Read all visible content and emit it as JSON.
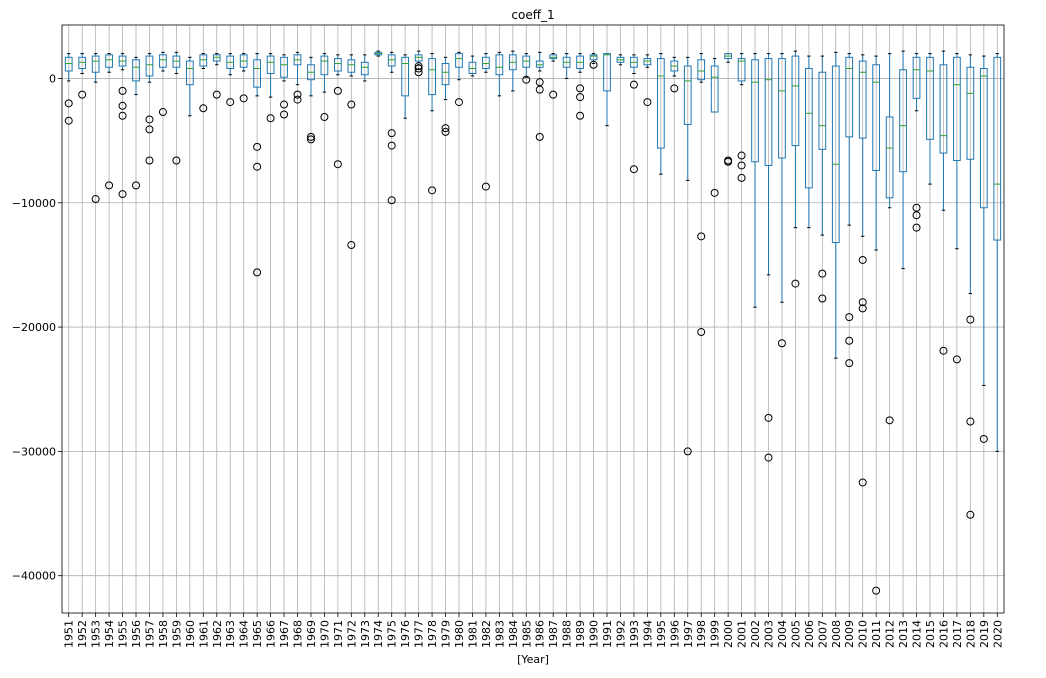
{
  "chart_data": {
    "type": "box",
    "title": "coeff_1",
    "xlabel": "[Year]",
    "ylabel": "",
    "ylim": [
      -43000,
      4300
    ],
    "yticks": [
      0,
      -10000,
      -20000,
      -30000,
      -40000
    ],
    "ytick_labels": [
      "0",
      "−10000",
      "−20000",
      "−30000",
      "−40000"
    ],
    "grid": true,
    "colors": {
      "box": "#1f77b4",
      "median": "#2ca02c",
      "flier": "#000000",
      "grid": "#b0b0b0"
    },
    "categories": [
      "1951",
      "1952",
      "1953",
      "1954",
      "1955",
      "1956",
      "1957",
      "1958",
      "1959",
      "1960",
      "1961",
      "1962",
      "1963",
      "1964",
      "1965",
      "1966",
      "1967",
      "1968",
      "1969",
      "1970",
      "1971",
      "1972",
      "1973",
      "1974",
      "1975",
      "1976",
      "1977",
      "1978",
      "1979",
      "1980",
      "1981",
      "1982",
      "1983",
      "1984",
      "1985",
      "1986",
      "1987",
      "1988",
      "1989",
      "1990",
      "1991",
      "1992",
      "1993",
      "1994",
      "1995",
      "1996",
      "1997",
      "1998",
      "1999",
      "2000",
      "2001",
      "2002",
      "2003",
      "2004",
      "2005",
      "2006",
      "2007",
      "2008",
      "2009",
      "2010",
      "2011",
      "2012",
      "2013",
      "2014",
      "2015",
      "2016",
      "2017",
      "2018",
      "2019",
      "2020"
    ],
    "boxes": [
      {
        "lo": -200,
        "q1": 600,
        "med": 1200,
        "q3": 1700,
        "hi": 2000,
        "fliers": [
          -2000,
          -3400
        ]
      },
      {
        "lo": 400,
        "q1": 800,
        "med": 1300,
        "q3": 1700,
        "hi": 2000,
        "fliers": [
          -1300
        ]
      },
      {
        "lo": -300,
        "q1": 500,
        "med": 1400,
        "q3": 1800,
        "hi": 2000,
        "fliers": [
          -9700
        ]
      },
      {
        "lo": 500,
        "q1": 900,
        "med": 1500,
        "q3": 1900,
        "hi": 2000,
        "fliers": [
          -8600
        ]
      },
      {
        "lo": 700,
        "q1": 1000,
        "med": 1400,
        "q3": 1800,
        "hi": 2000,
        "fliers": [
          -1000,
          -2200,
          -3000,
          -9300
        ]
      },
      {
        "lo": -1300,
        "q1": -200,
        "med": 900,
        "q3": 1500,
        "hi": 1700,
        "fliers": [
          -8600
        ]
      },
      {
        "lo": -300,
        "q1": 200,
        "med": 1100,
        "q3": 1800,
        "hi": 2000,
        "fliers": [
          -3300,
          -4100,
          -6600
        ]
      },
      {
        "lo": 600,
        "q1": 900,
        "med": 1500,
        "q3": 1900,
        "hi": 2100,
        "fliers": [
          -2700
        ]
      },
      {
        "lo": 400,
        "q1": 900,
        "med": 1400,
        "q3": 1800,
        "hi": 2100,
        "fliers": [
          -6600
        ]
      },
      {
        "lo": -3000,
        "q1": -500,
        "med": 800,
        "q3": 1400,
        "hi": 1700,
        "fliers": []
      },
      {
        "lo": 800,
        "q1": 1000,
        "med": 1500,
        "q3": 1900,
        "hi": 2000,
        "fliers": [
          -2400
        ]
      },
      {
        "lo": 1100,
        "q1": 1400,
        "med": 1700,
        "q3": 1900,
        "hi": 2000,
        "fliers": [
          -1300
        ]
      },
      {
        "lo": 300,
        "q1": 800,
        "med": 1300,
        "q3": 1800,
        "hi": 2000,
        "fliers": [
          -1900
        ]
      },
      {
        "lo": 600,
        "q1": 900,
        "med": 1400,
        "q3": 1900,
        "hi": 2000,
        "fliers": [
          -1600
        ]
      },
      {
        "lo": -1400,
        "q1": -700,
        "med": 800,
        "q3": 1500,
        "hi": 2000,
        "fliers": [
          -5500,
          -7100,
          -15600
        ]
      },
      {
        "lo": -1500,
        "q1": 400,
        "med": 1300,
        "q3": 1800,
        "hi": 2000,
        "fliers": [
          -3200
        ]
      },
      {
        "lo": -200,
        "q1": 100,
        "med": 1100,
        "q3": 1700,
        "hi": 1900,
        "fliers": [
          -2100,
          -2900
        ]
      },
      {
        "lo": -500,
        "q1": 1100,
        "med": 1500,
        "q3": 1900,
        "hi": 2100,
        "fliers": [
          -1300,
          -1700
        ]
      },
      {
        "lo": -1400,
        "q1": -100,
        "med": 500,
        "q3": 1100,
        "hi": 1700,
        "fliers": [
          -4700,
          -4900
        ]
      },
      {
        "lo": -1100,
        "q1": 300,
        "med": 1400,
        "q3": 1800,
        "hi": 2000,
        "fliers": [
          -3100
        ]
      },
      {
        "lo": 300,
        "q1": 600,
        "med": 1200,
        "q3": 1600,
        "hi": 1900,
        "fliers": [
          -1000,
          -6900
        ]
      },
      {
        "lo": 200,
        "q1": 500,
        "med": 1100,
        "q3": 1500,
        "hi": 1900,
        "fliers": [
          -2100,
          -13400
        ]
      },
      {
        "lo": -200,
        "q1": 300,
        "med": 900,
        "q3": 1300,
        "hi": 1900,
        "fliers": []
      },
      {
        "lo": 1800,
        "q1": 1900,
        "med": 2000,
        "q3": 2100,
        "hi": 2200,
        "fliers": []
      },
      {
        "lo": 500,
        "q1": 1000,
        "med": 1500,
        "q3": 1900,
        "hi": 2100,
        "fliers": [
          -4400,
          -5400,
          -9800
        ]
      },
      {
        "lo": -3200,
        "q1": -1400,
        "med": 1200,
        "q3": 1700,
        "hi": 1900,
        "fliers": []
      },
      {
        "lo": 1100,
        "q1": 1400,
        "med": 1700,
        "q3": 1900,
        "hi": 2200,
        "fliers": [
          500,
          800,
          1000
        ]
      },
      {
        "lo": -2600,
        "q1": -1300,
        "med": 700,
        "q3": 1600,
        "hi": 2000,
        "fliers": [
          -9000
        ]
      },
      {
        "lo": -1700,
        "q1": -500,
        "med": 500,
        "q3": 1200,
        "hi": 1700,
        "fliers": [
          -4000,
          -4300
        ]
      },
      {
        "lo": -100,
        "q1": 900,
        "med": 1600,
        "q3": 2000,
        "hi": 2100,
        "fliers": [
          -1900
        ]
      },
      {
        "lo": 200,
        "q1": 400,
        "med": 800,
        "q3": 1300,
        "hi": 1800,
        "fliers": []
      },
      {
        "lo": 500,
        "q1": 800,
        "med": 1200,
        "q3": 1700,
        "hi": 2000,
        "fliers": [
          -8700
        ]
      },
      {
        "lo": -1400,
        "q1": 300,
        "med": 900,
        "q3": 1900,
        "hi": 2100,
        "fliers": []
      },
      {
        "lo": -1000,
        "q1": 700,
        "med": 1300,
        "q3": 1900,
        "hi": 2200,
        "fliers": []
      },
      {
        "lo": 100,
        "q1": 900,
        "med": 1400,
        "q3": 1800,
        "hi": 2000,
        "fliers": [
          -100
        ]
      },
      {
        "lo": 600,
        "q1": 900,
        "med": 1100,
        "q3": 1400,
        "hi": 2100,
        "fliers": [
          -300,
          -900,
          -4700
        ]
      },
      {
        "lo": 1400,
        "q1": 1600,
        "med": 1700,
        "q3": 1900,
        "hi": 2000,
        "fliers": [
          -1300
        ]
      },
      {
        "lo": 0,
        "q1": 900,
        "med": 1300,
        "q3": 1700,
        "hi": 2000,
        "fliers": []
      },
      {
        "lo": 500,
        "q1": 800,
        "med": 1300,
        "q3": 1800,
        "hi": 2000,
        "fliers": [
          -800,
          -1500,
          -3000
        ]
      },
      {
        "lo": 1200,
        "q1": 1500,
        "med": 1800,
        "q3": 1900,
        "hi": 2000,
        "fliers": [
          1100
        ]
      },
      {
        "lo": -3800,
        "q1": -1000,
        "med": 1900,
        "q3": 2000,
        "hi": 2000,
        "fliers": []
      },
      {
        "lo": 1100,
        "q1": 1300,
        "med": 1500,
        "q3": 1700,
        "hi": 1900,
        "fliers": []
      },
      {
        "lo": 400,
        "q1": 900,
        "med": 1300,
        "q3": 1700,
        "hi": 1900,
        "fliers": [
          -500,
          -7300
        ]
      },
      {
        "lo": 900,
        "q1": 1100,
        "med": 1400,
        "q3": 1600,
        "hi": 1900,
        "fliers": [
          -1900
        ]
      },
      {
        "lo": -7700,
        "q1": -5600,
        "med": 200,
        "q3": 1600,
        "hi": 2000,
        "fliers": []
      },
      {
        "lo": 200,
        "q1": 600,
        "med": 1000,
        "q3": 1400,
        "hi": 1700,
        "fliers": [
          -800
        ]
      },
      {
        "lo": -8200,
        "q1": -3700,
        "med": -200,
        "q3": 1000,
        "hi": 1700,
        "fliers": [
          -30000
        ]
      },
      {
        "lo": -300,
        "q1": -100,
        "med": 600,
        "q3": 1500,
        "hi": 2000,
        "fliers": [
          -12700,
          -20400
        ]
      },
      {
        "lo": -2700,
        "q1": -2700,
        "med": 100,
        "q3": 1000,
        "hi": 1600,
        "fliers": [
          -9200
        ]
      },
      {
        "lo": 1300,
        "q1": 1600,
        "med": 1800,
        "q3": 2000,
        "hi": 2000,
        "fliers": [
          -6600,
          -6700
        ]
      },
      {
        "lo": -500,
        "q1": -200,
        "med": 1400,
        "q3": 1600,
        "hi": 2000,
        "fliers": [
          -6200,
          -7000,
          -8000
        ]
      },
      {
        "lo": -18400,
        "q1": -6700,
        "med": -300,
        "q3": 1500,
        "hi": 2000,
        "fliers": []
      },
      {
        "lo": -15800,
        "q1": -7000,
        "med": -100,
        "q3": 1600,
        "hi": 2000,
        "fliers": [
          -27300,
          -30500
        ]
      },
      {
        "lo": -18000,
        "q1": -6400,
        "med": -1000,
        "q3": 1600,
        "hi": 2000,
        "fliers": [
          -21300
        ]
      },
      {
        "lo": -12000,
        "q1": -5400,
        "med": -600,
        "q3": 1800,
        "hi": 2200,
        "fliers": [
          -16500
        ]
      },
      {
        "lo": -12000,
        "q1": -8800,
        "med": -2800,
        "q3": 800,
        "hi": 1800,
        "fliers": []
      },
      {
        "lo": -12600,
        "q1": -5700,
        "med": -3800,
        "q3": 500,
        "hi": 1800,
        "fliers": [
          -15700,
          -17700
        ]
      },
      {
        "lo": -22500,
        "q1": -13200,
        "med": -6900,
        "q3": 1000,
        "hi": 2100,
        "fliers": []
      },
      {
        "lo": -11800,
        "q1": -4700,
        "med": 800,
        "q3": 1700,
        "hi": 2000,
        "fliers": [
          -19200,
          -21100,
          -22900
        ]
      },
      {
        "lo": -12700,
        "q1": -4800,
        "med": 500,
        "q3": 1400,
        "hi": 1900,
        "fliers": [
          -14600,
          -18000,
          -18500,
          -32500
        ]
      },
      {
        "lo": -13800,
        "q1": -7400,
        "med": -300,
        "q3": 1100,
        "hi": 1800,
        "fliers": [
          -41200
        ]
      },
      {
        "lo": -10400,
        "q1": -9600,
        "med": -5600,
        "q3": -3100,
        "hi": 2000,
        "fliers": [
          -27500
        ]
      },
      {
        "lo": -15300,
        "q1": -7500,
        "med": -3800,
        "q3": 700,
        "hi": 2200,
        "fliers": []
      },
      {
        "lo": -2600,
        "q1": -1600,
        "med": 700,
        "q3": 1700,
        "hi": 2000,
        "fliers": [
          -10400,
          -11000,
          -12000
        ]
      },
      {
        "lo": -8500,
        "q1": -4900,
        "med": 600,
        "q3": 1700,
        "hi": 2000,
        "fliers": []
      },
      {
        "lo": -10600,
        "q1": -6000,
        "med": -4600,
        "q3": 1100,
        "hi": 2200,
        "fliers": [
          -21900
        ]
      },
      {
        "lo": -13700,
        "q1": -6600,
        "med": -500,
        "q3": 1700,
        "hi": 2000,
        "fliers": [
          -22600
        ]
      },
      {
        "lo": -17300,
        "q1": -6500,
        "med": -1200,
        "q3": 900,
        "hi": 1900,
        "fliers": [
          -19400,
          -27600,
          -35100
        ]
      },
      {
        "lo": -24700,
        "q1": -10400,
        "med": 200,
        "q3": 800,
        "hi": 1800,
        "fliers": [
          -29000
        ]
      },
      {
        "lo": -30000,
        "q1": -13000,
        "med": -8500,
        "q3": 1700,
        "hi": 2000,
        "fliers": []
      }
    ]
  }
}
